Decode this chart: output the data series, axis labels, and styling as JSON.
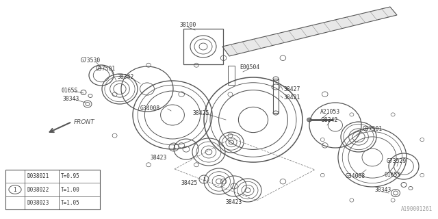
{
  "bg_color": "#ffffff",
  "fig_width": 6.4,
  "fig_height": 3.2,
  "dpi": 100,
  "line_color": "#555555",
  "text_color": "#333333",
  "label_fontsize": 5.8,
  "table_data": [
    [
      "D038021",
      "T=0.95"
    ],
    [
      "D038022",
      "T=1.00"
    ],
    [
      "D038023",
      "T=1.05"
    ]
  ],
  "watermark": "A190001261"
}
